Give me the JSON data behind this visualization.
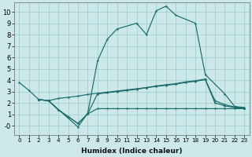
{
  "xlabel": "Humidex (Indice chaleur)",
  "background_color": "#cce8e8",
  "grid_color": "#99cccc",
  "line_color": "#1a6b6b",
  "xlim": [
    -0.5,
    23.5
  ],
  "ylim": [
    -0.8,
    10.8
  ],
  "xticks": [
    0,
    1,
    2,
    3,
    4,
    5,
    6,
    7,
    8,
    9,
    10,
    11,
    12,
    13,
    14,
    15,
    16,
    17,
    18,
    19,
    20,
    21,
    22,
    23
  ],
  "yticks": [
    0,
    1,
    2,
    3,
    4,
    5,
    6,
    7,
    8,
    9,
    10
  ],
  "ytick_labels": [
    "-0",
    "1",
    "2",
    "3",
    "4",
    "5",
    "6",
    "7",
    "8",
    "9",
    "10"
  ],
  "line1_x": [
    0,
    1,
    2,
    3,
    6,
    7,
    8,
    9,
    10,
    12,
    13,
    14,
    15,
    16,
    18,
    19,
    21,
    22,
    23
  ],
  "line1_y": [
    3.8,
    3.1,
    2.3,
    2.2,
    -0.1,
    1.1,
    5.7,
    7.6,
    8.5,
    9.0,
    8.0,
    10.1,
    10.5,
    9.7,
    9.0,
    4.5,
    2.8,
    1.7,
    1.6
  ],
  "line2_x": [
    2,
    3,
    4,
    5,
    6,
    7,
    8,
    9,
    10,
    11,
    12,
    13,
    14,
    15,
    16,
    17,
    18,
    19,
    20,
    21,
    22,
    23
  ],
  "line2_y": [
    2.3,
    2.2,
    2.4,
    2.5,
    2.6,
    2.75,
    2.85,
    2.95,
    3.05,
    3.15,
    3.25,
    3.35,
    3.5,
    3.6,
    3.7,
    3.85,
    3.95,
    4.1,
    2.2,
    1.85,
    1.65,
    1.55
  ],
  "line3_x": [
    2,
    3,
    4,
    5,
    6,
    7,
    8,
    9,
    10,
    11,
    12,
    13,
    14,
    15,
    16,
    17,
    18,
    19,
    20,
    21,
    22,
    23
  ],
  "line3_y": [
    2.3,
    2.2,
    1.4,
    0.8,
    0.2,
    1.05,
    2.8,
    2.9,
    3.0,
    3.1,
    3.2,
    3.35,
    3.45,
    3.55,
    3.65,
    3.8,
    3.9,
    4.05,
    2.0,
    1.75,
    1.6,
    1.5
  ],
  "line4_x": [
    2,
    3,
    4,
    5,
    6,
    7,
    8,
    9,
    10,
    11,
    12,
    13,
    14,
    15,
    16,
    17,
    18,
    19,
    20,
    21,
    22,
    23
  ],
  "line4_y": [
    2.3,
    2.2,
    1.4,
    0.8,
    0.2,
    1.05,
    1.5,
    1.5,
    1.5,
    1.5,
    1.5,
    1.5,
    1.5,
    1.5,
    1.5,
    1.5,
    1.5,
    1.5,
    1.5,
    1.5,
    1.5,
    1.5
  ]
}
